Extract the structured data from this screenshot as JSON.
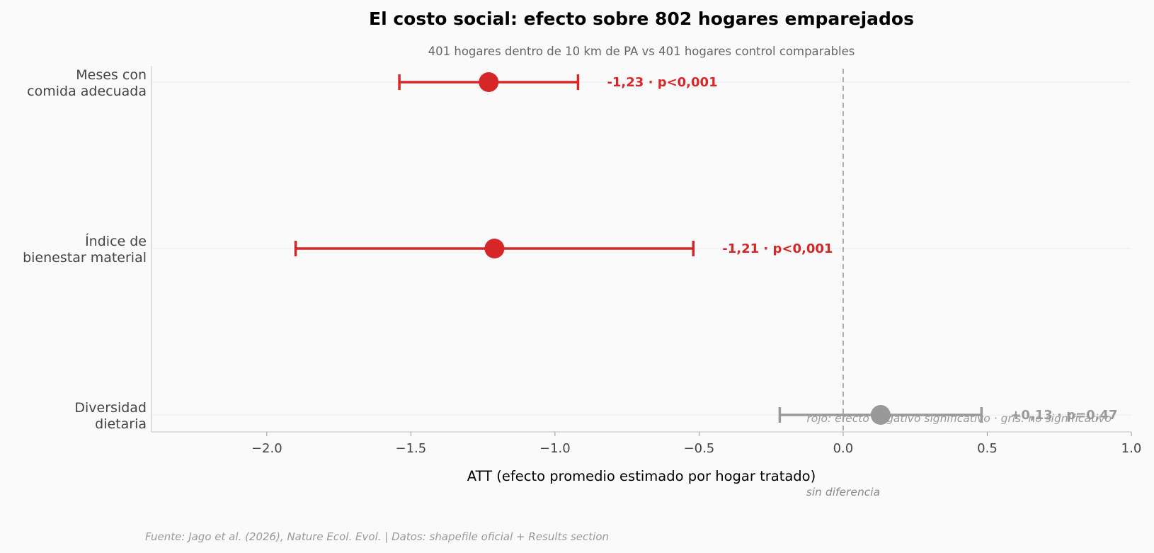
{
  "chart_data": {
    "type": "forest",
    "title": "El costo social: efecto sobre 802 hogares emparejados",
    "subtitle": "401 hogares dentro de 10 km de PA vs 401 hogares control comparables",
    "xlabel": "ATT (efecto promedio estimado por hogar tratado)",
    "xlim": [
      -2.4,
      1.0
    ],
    "xticks": [
      -2.0,
      -1.5,
      -1.0,
      -0.5,
      0.0,
      0.5,
      1.0
    ],
    "xtick_labels": [
      "−2.0",
      "−1.5",
      "−1.0",
      "−0.5",
      "0.0",
      "0.5",
      "1.0"
    ],
    "reference_line": {
      "x": 0.0,
      "label": "sin diferencia"
    },
    "rows": [
      {
        "label_lines": [
          "Meses con",
          "comida adecuada"
        ],
        "estimate": -1.23,
        "ci": [
          -1.54,
          -0.92
        ],
        "annotation": "-1,23 · p<0,001",
        "significant": true
      },
      {
        "label_lines": [
          "Índice de",
          "bienestar material"
        ],
        "estimate": -1.21,
        "ci": [
          -1.9,
          -0.52
        ],
        "annotation": "-1,21 · p<0,001",
        "significant": true
      },
      {
        "label_lines": [
          "Diversidad",
          "dietaria"
        ],
        "estimate": 0.13,
        "ci": [
          -0.22,
          0.48
        ],
        "annotation": "+0,13 · p=0,47",
        "significant": false
      }
    ],
    "colors": {
      "significant": "#d62728",
      "not_significant": "#999999",
      "background": "#fafafa"
    },
    "legend_note": "rojo: efecto negativo significativo · gris: no significativo",
    "source": "Fuente: Jago et al. (2026), Nature Ecol. Evol. | Datos: shapefile oficial + Results section"
  }
}
